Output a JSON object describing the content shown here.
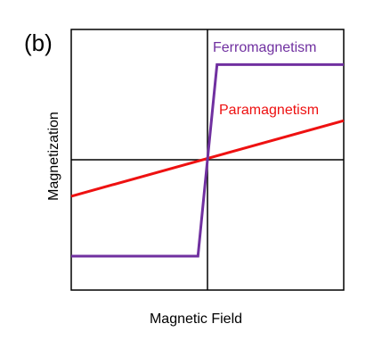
{
  "chart_data": {
    "type": "line",
    "panel_label": "(b)",
    "xlabel": "Magnetic Field",
    "ylabel": "Magnetization",
    "xlim": [
      -1,
      1
    ],
    "ylim": [
      -1,
      1
    ],
    "axes": "cross-at-origin",
    "ticks": "none",
    "grid": false,
    "legend": "inline labels",
    "series": [
      {
        "name": "Ferromagnetism",
        "color": "#7030a0",
        "x": [
          -1,
          -0.07,
          0,
          0.07,
          1
        ],
        "y": [
          -0.74,
          -0.74,
          0,
          0.73,
          0.73
        ]
      },
      {
        "name": "Paramagnetism",
        "color": "#ee1111",
        "x": [
          -1,
          1
        ],
        "y": [
          -0.28,
          0.3
        ]
      }
    ]
  }
}
